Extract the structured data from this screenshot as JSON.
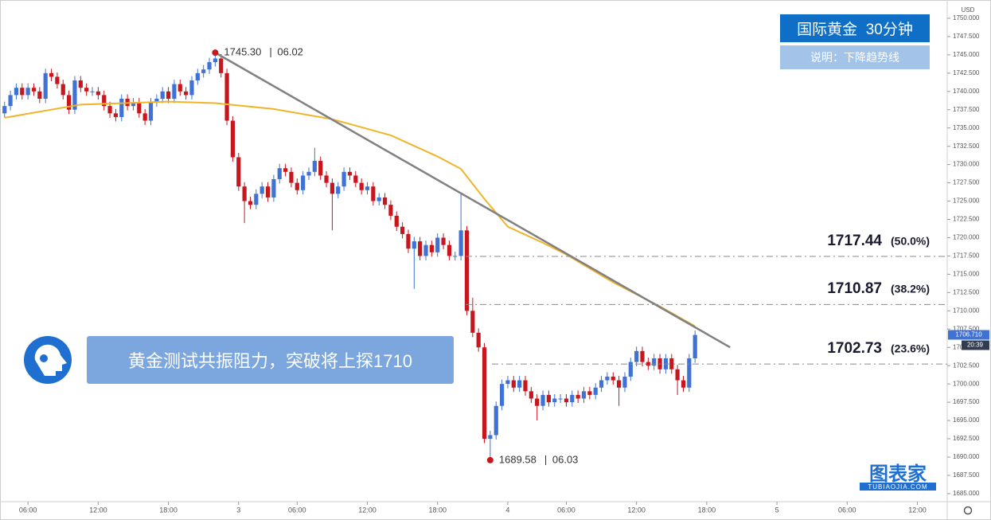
{
  "chart_data": {
    "type": "candlestick",
    "title": "国际黄金  30分钟",
    "subtitle": "说明：下降趋势线",
    "banner": "黄金测试共振阻力，突破将上探1710",
    "brand": "图表家",
    "brand_url": "TUBIAOJIA.COM",
    "currency": "USD",
    "up_color": "#3f72d4",
    "down_color": "#c8161e",
    "open": [
      1737.0,
      1738.0,
      1739.5,
      1740.5,
      1739.5,
      1740.5,
      1740.0,
      1739.0,
      1742.5,
      1742.0,
      1741.0,
      1739.5,
      1737.5,
      1741.5,
      1740.5,
      1740.0,
      1740.0,
      1739.5,
      1738.0,
      1737.0,
      1736.5,
      1739.0,
      1738.0,
      1738.5,
      1737.0,
      1736.0,
      1738.5,
      1739.0,
      1740.0,
      1739.0,
      1741.0,
      1740.0,
      1739.5,
      1741.5,
      1742.5,
      1743.0,
      1744.0,
      1744.5,
      1742.5,
      1736.0,
      1731.0,
      1727.0,
      1725.0,
      1724.5,
      1726.0,
      1727.0,
      1725.5,
      1728.0,
      1729.5,
      1729.0,
      1727.5,
      1726.5,
      1728.5,
      1729.0,
      1730.5,
      1728.5,
      1727.5,
      1726.0,
      1727.0,
      1729.0,
      1728.5,
      1727.5,
      1726.5,
      1727.0,
      1725.0,
      1725.5,
      1724.5,
      1723.0,
      1721.5,
      1720.5,
      1718.5,
      1719.5,
      1717.5,
      1719.0,
      1718.0,
      1720.0,
      1719.0,
      1717.5,
      1717.5,
      1721.0,
      1710.0,
      1707.0,
      1705.0,
      1692.5,
      1693.0,
      1697.0,
      1700.0,
      1700.5,
      1699.5,
      1700.5,
      1699.0,
      1698.0,
      1697.0,
      1698.5,
      1697.5,
      1698.0,
      1698.0,
      1697.5,
      1698.5,
      1698.0,
      1699.0,
      1698.5,
      1699.5,
      1700.5,
      1701.0,
      1700.5,
      1699.5,
      1701.0,
      1703.0,
      1704.5,
      1703.0,
      1702.5,
      1703.5,
      1702.0,
      1703.5,
      1702.0,
      1700.5,
      1699.5,
      1703.5
    ],
    "high": [
      1738.6,
      1740.1,
      1741.1,
      1741.1,
      1741.1,
      1741.1,
      1740.6,
      1743.1,
      1743.1,
      1742.6,
      1741.6,
      1740.1,
      1742.1,
      1742.1,
      1741.1,
      1740.6,
      1740.6,
      1740.1,
      1738.6,
      1737.6,
      1739.6,
      1739.6,
      1739.1,
      1739.1,
      1737.6,
      1739.1,
      1739.6,
      1740.6,
      1740.6,
      1741.6,
      1741.6,
      1740.6,
      1742.1,
      1743.1,
      1743.6,
      1744.6,
      1745.3,
      1745.1,
      1743.1,
      1736.6,
      1731.6,
      1727.6,
      1725.6,
      1726.6,
      1727.6,
      1727.6,
      1728.6,
      1730.1,
      1730.1,
      1729.6,
      1728.1,
      1729.1,
      1729.6,
      1732.3,
      1731.1,
      1729.1,
      1728.1,
      1727.6,
      1729.6,
      1729.6,
      1729.1,
      1728.1,
      1727.6,
      1727.6,
      1726.1,
      1726.1,
      1725.1,
      1723.6,
      1722.1,
      1721.1,
      1720.1,
      1720.1,
      1719.6,
      1719.6,
      1720.6,
      1720.6,
      1719.6,
      1718.1,
      1726.0,
      1721.6,
      1711.8,
      1707.6,
      1705.6,
      1693.6,
      1697.6,
      1700.6,
      1701.1,
      1701.1,
      1701.1,
      1701.1,
      1699.6,
      1698.6,
      1699.1,
      1699.1,
      1698.6,
      1698.6,
      1698.6,
      1699.1,
      1699.1,
      1699.6,
      1699.6,
      1700.1,
      1701.1,
      1701.6,
      1701.6,
      1701.1,
      1701.6,
      1703.6,
      1705.1,
      1705.1,
      1703.6,
      1704.1,
      1704.1,
      1704.1,
      1704.1,
      1702.6,
      1701.1,
      1704.1,
      1707.3
    ],
    "low": [
      1736.4,
      1737.4,
      1738.9,
      1738.9,
      1738.9,
      1739.4,
      1738.4,
      1738.4,
      1741.4,
      1740.4,
      1738.9,
      1736.9,
      1736.9,
      1739.9,
      1739.4,
      1739.4,
      1738.9,
      1737.4,
      1736.4,
      1735.9,
      1735.9,
      1737.4,
      1737.4,
      1736.4,
      1735.4,
      1735.4,
      1737.9,
      1738.4,
      1738.4,
      1738.4,
      1739.4,
      1738.9,
      1738.9,
      1740.9,
      1741.9,
      1742.4,
      1743.4,
      1741.9,
      1735.4,
      1730.4,
      1726.4,
      1722.0,
      1723.9,
      1723.9,
      1725.4,
      1724.9,
      1724.9,
      1727.4,
      1728.4,
      1726.9,
      1725.9,
      1725.9,
      1727.9,
      1728.4,
      1727.9,
      1726.9,
      1721.0,
      1725.4,
      1726.4,
      1727.9,
      1726.9,
      1725.9,
      1725.9,
      1724.4,
      1724.4,
      1723.9,
      1722.4,
      1720.9,
      1719.9,
      1717.9,
      1713.0,
      1716.9,
      1716.9,
      1717.4,
      1717.4,
      1718.4,
      1716.9,
      1716.9,
      1716.9,
      1709.4,
      1706.4,
      1704.4,
      1691.9,
      1689.58,
      1692.4,
      1696.4,
      1699.4,
      1698.9,
      1698.9,
      1698.4,
      1697.4,
      1695.0,
      1696.4,
      1696.9,
      1696.9,
      1697.4,
      1696.9,
      1696.9,
      1697.4,
      1697.4,
      1697.9,
      1697.9,
      1698.9,
      1699.9,
      1699.9,
      1697.0,
      1698.9,
      1700.4,
      1702.4,
      1702.4,
      1701.9,
      1701.9,
      1701.4,
      1701.4,
      1701.4,
      1698.5,
      1698.9,
      1698.9,
      1702.9
    ],
    "close": [
      1738.0,
      1739.5,
      1740.5,
      1739.5,
      1740.5,
      1740.0,
      1739.0,
      1742.5,
      1742.0,
      1741.0,
      1739.5,
      1737.5,
      1741.5,
      1740.5,
      1740.0,
      1740.0,
      1739.5,
      1738.0,
      1737.0,
      1736.5,
      1739.0,
      1738.0,
      1738.5,
      1737.0,
      1736.0,
      1738.5,
      1739.0,
      1740.0,
      1739.0,
      1741.0,
      1740.0,
      1739.5,
      1741.5,
      1742.5,
      1743.0,
      1744.0,
      1744.5,
      1742.5,
      1736.0,
      1731.0,
      1727.0,
      1725.0,
      1724.5,
      1726.0,
      1727.0,
      1725.5,
      1728.0,
      1729.5,
      1729.0,
      1727.5,
      1726.5,
      1728.5,
      1729.0,
      1730.5,
      1728.5,
      1727.5,
      1726.0,
      1727.0,
      1729.0,
      1728.5,
      1727.5,
      1726.5,
      1727.0,
      1725.0,
      1725.5,
      1724.5,
      1723.0,
      1721.5,
      1720.5,
      1718.5,
      1719.5,
      1717.5,
      1719.0,
      1718.0,
      1720.0,
      1719.0,
      1717.5,
      1717.5,
      1721.0,
      1710.0,
      1707.0,
      1705.0,
      1692.5,
      1693.0,
      1697.0,
      1700.0,
      1700.5,
      1699.5,
      1700.5,
      1699.0,
      1698.0,
      1697.0,
      1698.5,
      1697.5,
      1698.0,
      1698.0,
      1697.5,
      1698.5,
      1698.0,
      1699.0,
      1698.5,
      1699.5,
      1700.5,
      1701.0,
      1700.5,
      1699.5,
      1701.0,
      1703.0,
      1704.5,
      1703.0,
      1702.5,
      1703.5,
      1702.0,
      1703.5,
      1702.0,
      1700.5,
      1699.5,
      1703.5,
      1706.7
    ],
    "moving_average": {
      "color": "#f0b429",
      "x": [
        0,
        13,
        28,
        36,
        46,
        56,
        66,
        74,
        78,
        82,
        86,
        92,
        96,
        104,
        112,
        118
      ],
      "values": [
        1736.4,
        1738.2,
        1738.6,
        1738.4,
        1737.6,
        1736.2,
        1734.0,
        1731.1,
        1729.4,
        1725.3,
        1721.5,
        1719.3,
        1717.7,
        1713.9,
        1710.6,
        1707.9
      ]
    },
    "trendline": {
      "color": "#808080",
      "x": [
        36,
        124
      ],
      "values": [
        1745.3,
        1705.0
      ]
    },
    "fibs": [
      {
        "value": 1717.44,
        "label": "(50.0%)"
      },
      {
        "value": 1710.87,
        "label": "(38.2%)"
      },
      {
        "value": 1702.73,
        "label": "(23.6%)"
      }
    ],
    "annotations": [
      {
        "x": 36,
        "value": 1745.3,
        "label": "1745.30",
        "date": "06.02"
      },
      {
        "x": 83,
        "value": 1689.58,
        "label": "1689.58",
        "date": "06.03"
      }
    ],
    "last_price": {
      "value": 1706.71,
      "label": "1706.710",
      "countdown": "20:39"
    },
    "xlim": [
      -0.1,
      161.1
    ],
    "ylim": [
      1683.9,
      1752.5
    ],
    "xticks": [
      {
        "value": 4,
        "label": "06:00"
      },
      {
        "value": 16,
        "label": "12:00"
      },
      {
        "value": 28,
        "label": "18:00"
      },
      {
        "value": 40,
        "label": "3"
      },
      {
        "value": 50,
        "label": "06:00"
      },
      {
        "value": 62,
        "label": "12:00"
      },
      {
        "value": 74,
        "label": "18:00"
      },
      {
        "value": 86,
        "label": "4"
      },
      {
        "value": 96,
        "label": "06:00"
      },
      {
        "value": 108,
        "label": "12:00"
      },
      {
        "value": 120,
        "label": "18:00"
      },
      {
        "value": 132,
        "label": "5"
      },
      {
        "value": 144,
        "label": "06:00"
      },
      {
        "value": 156,
        "label": "12:00"
      }
    ],
    "yticks": [
      {
        "value": 1685,
        "label": "1685.000"
      },
      {
        "value": 1687.5,
        "label": "1687.500"
      },
      {
        "value": 1690,
        "label": "1690.000"
      },
      {
        "value": 1692.5,
        "label": "1692.500"
      },
      {
        "value": 1695,
        "label": "1695.000"
      },
      {
        "value": 1697.5,
        "label": "1697.500"
      },
      {
        "value": 1700,
        "label": "1700.000"
      },
      {
        "value": 1702.5,
        "label": "1702.500"
      },
      {
        "value": 1705,
        "label": "1705.000"
      },
      {
        "value": 1707.5,
        "label": "1707.500"
      },
      {
        "value": 1710,
        "label": "1710.000"
      },
      {
        "value": 1712.5,
        "label": "1712.500"
      },
      {
        "value": 1715,
        "label": "1715.000"
      },
      {
        "value": 1717.5,
        "label": "1717.500"
      },
      {
        "value": 1720,
        "label": "1720.000"
      },
      {
        "value": 1722.5,
        "label": "1722.500"
      },
      {
        "value": 1725,
        "label": "1725.000"
      },
      {
        "value": 1727.5,
        "label": "1727.500"
      },
      {
        "value": 1730,
        "label": "1730.000"
      },
      {
        "value": 1732.5,
        "label": "1732.500"
      },
      {
        "value": 1735,
        "label": "1735.000"
      },
      {
        "value": 1737.5,
        "label": "1737.500"
      },
      {
        "value": 1740,
        "label": "1740.000"
      },
      {
        "value": 1742.5,
        "label": "1742.500"
      },
      {
        "value": 1745,
        "label": "1745.000"
      },
      {
        "value": 1747.5,
        "label": "1747.500"
      },
      {
        "value": 1750,
        "label": "1750.000"
      }
    ]
  }
}
